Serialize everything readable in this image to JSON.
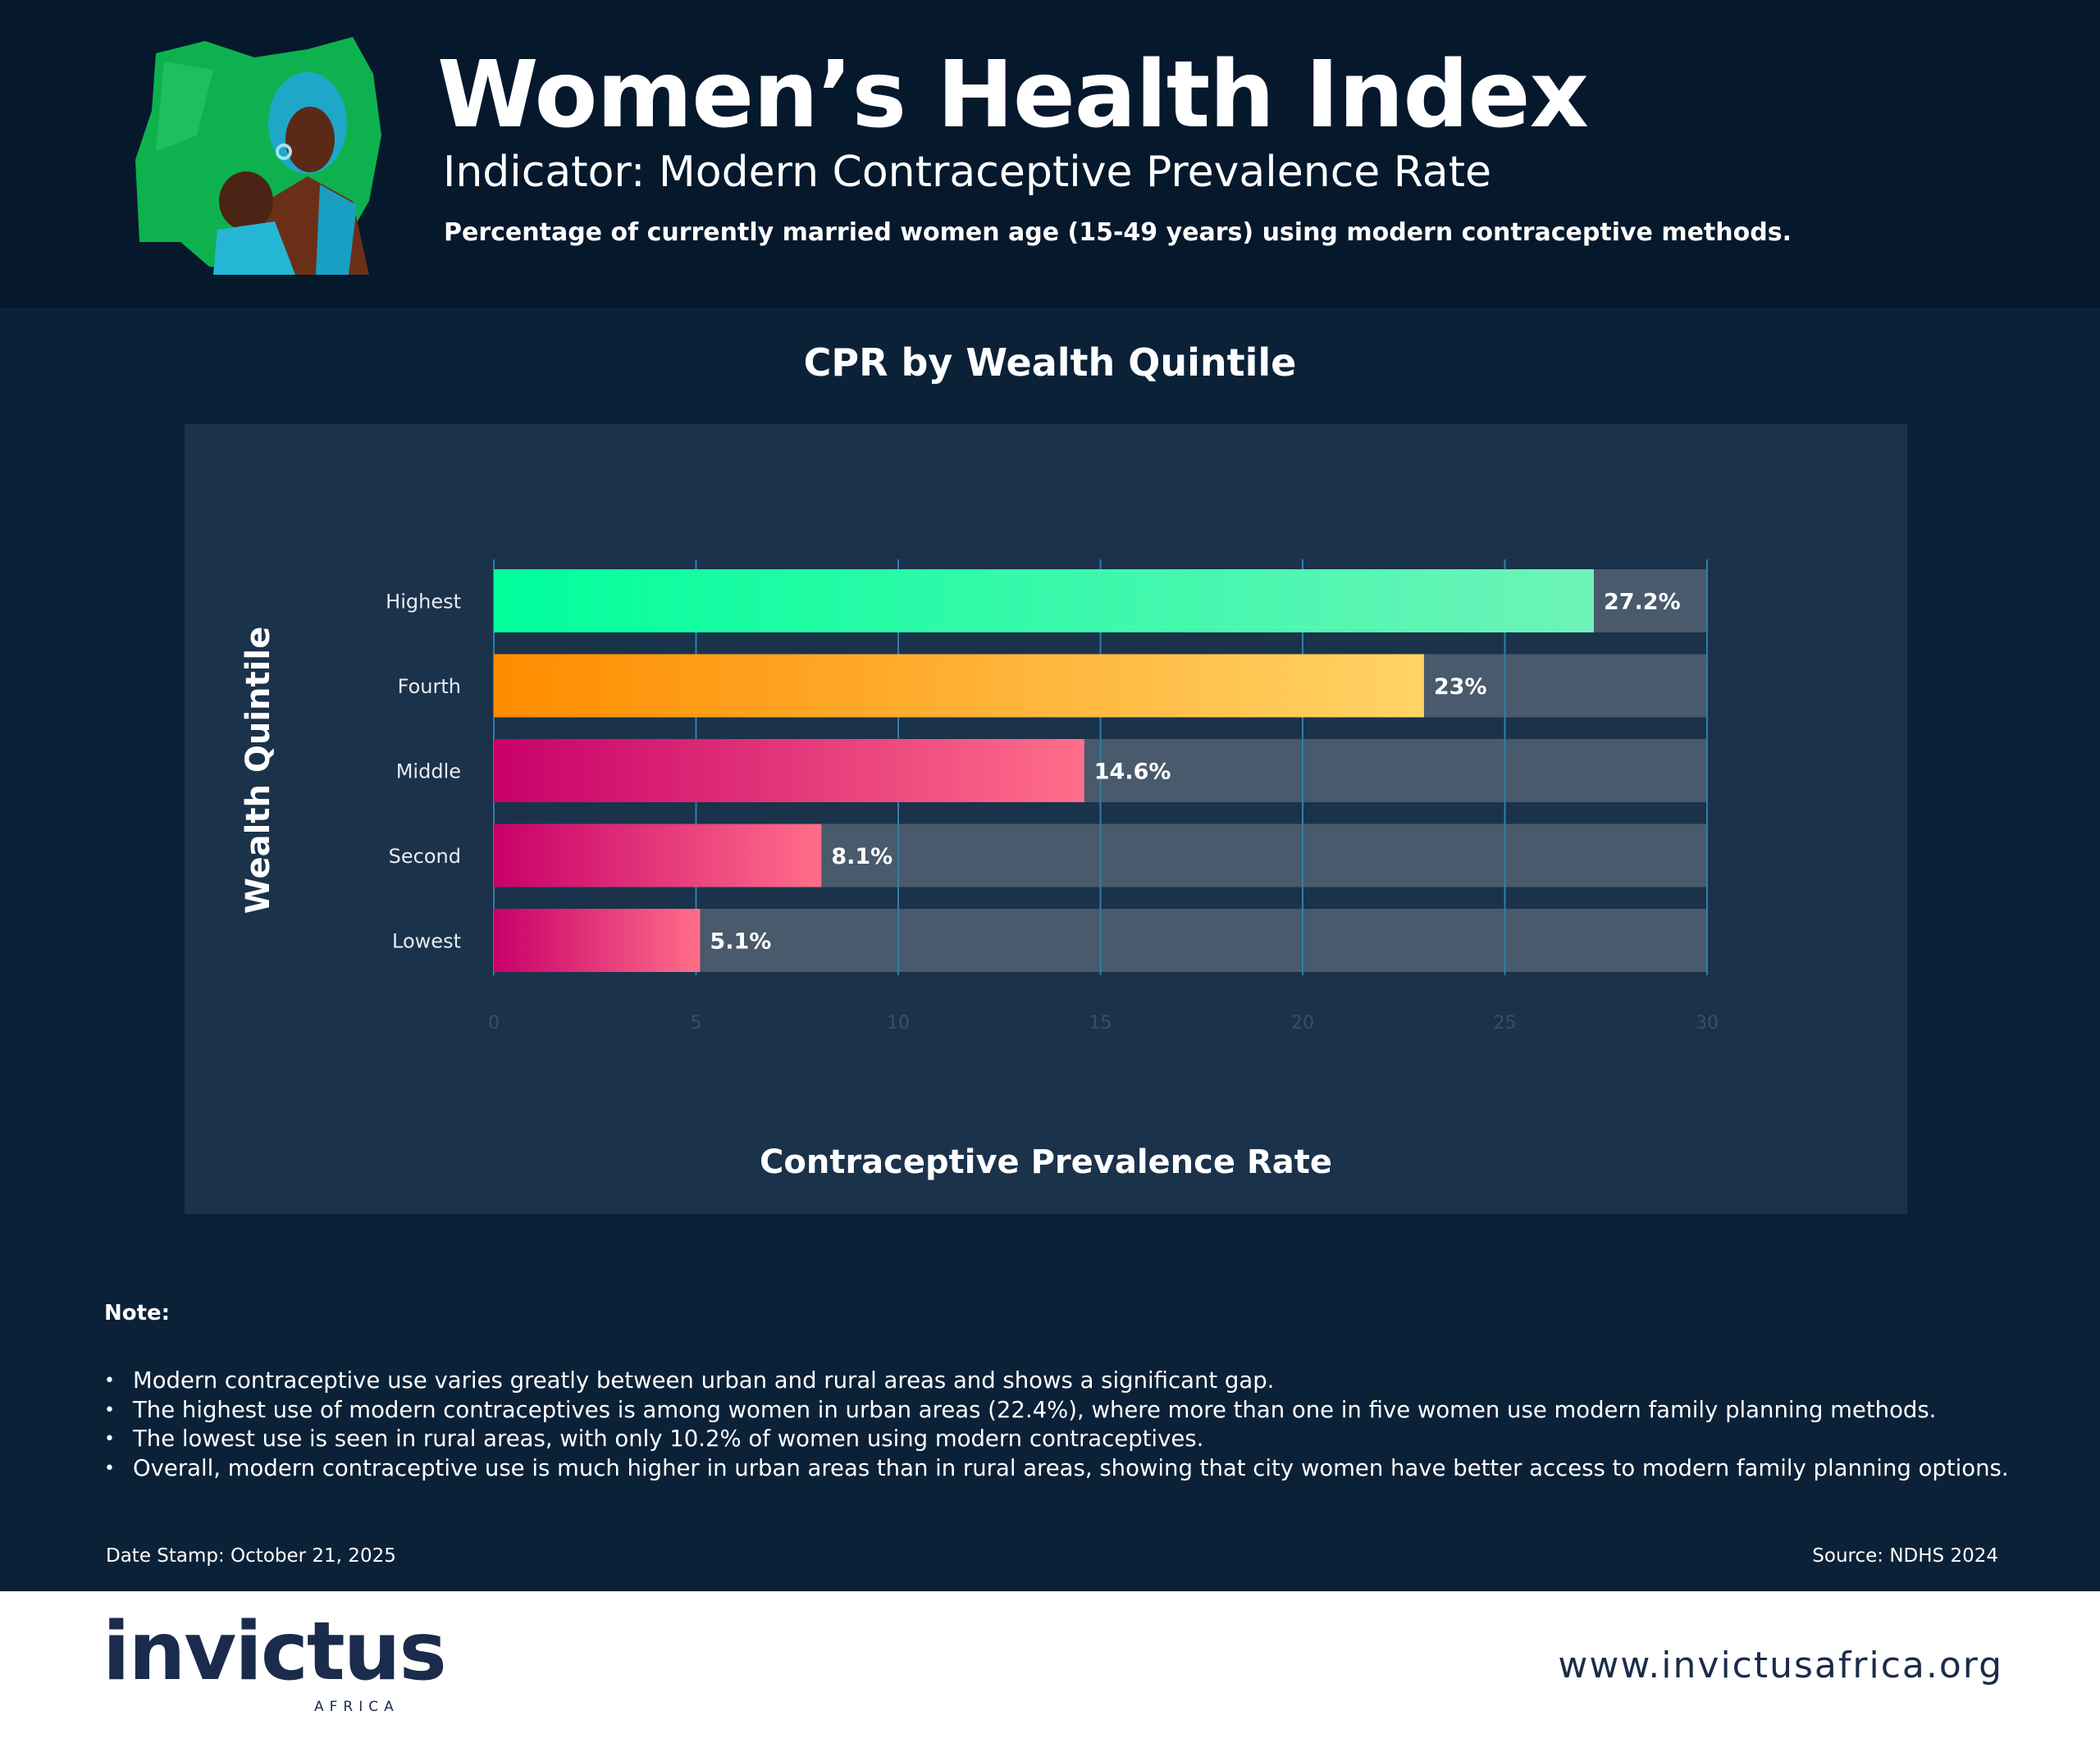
{
  "header": {
    "title": "Women’s Health Index",
    "indicator": "Indicator: Modern Contraceptive Prevalence Rate",
    "description": "Percentage of currently married women age (15-49 years) using modern contraceptive methods."
  },
  "chart_data": {
    "type": "bar",
    "orientation": "horizontal",
    "title": "CPR by Wealth Quintile",
    "xlabel": "Contraceptive Prevalence Rate",
    "ylabel": "Wealth Quintile",
    "categories": [
      "Highest",
      "Fourth",
      "Middle",
      "Second",
      "Lowest"
    ],
    "values": [
      27.2,
      23,
      14.6,
      8.1,
      5.1
    ],
    "value_labels": [
      "27.2%",
      "23%",
      "14.6%",
      "8.1%",
      "5.1%"
    ],
    "xlim": [
      0,
      30
    ],
    "xticks": [
      0,
      5,
      10,
      15,
      20,
      25,
      30
    ],
    "grid": true,
    "colors": {
      "Highest": [
        "#00ff9c",
        "#6ef3b9"
      ],
      "Fourth": [
        "#ff8c00",
        "#ffd466"
      ],
      "Middle": [
        "#c8006a",
        "#ff6e8a"
      ],
      "Second": [
        "#c8006a",
        "#ff6e8a"
      ],
      "Lowest": [
        "#c8006a",
        "#ff6e8a"
      ]
    },
    "track_color": "#485a6b",
    "gridline_color": "#2e7fa8"
  },
  "notes": {
    "label": "Note:",
    "bullet": "•",
    "items": [
      "Modern contraceptive use varies greatly between urban and rural areas and shows a significant gap.",
      "The highest use of modern contraceptives is among women in urban areas (22.4%), where more than one in five women use modern family planning methods.",
      "The lowest use is seen in rural areas, with only 10.2% of women using modern contraceptives.",
      "Overall, modern contraceptive use is much higher in urban areas than in rural areas, showing that city women have better access to modern family planning options."
    ]
  },
  "meta": {
    "date_stamp": "Date Stamp: October 21, 2025",
    "source": "Source: NDHS 2024"
  },
  "footer": {
    "logo_text": "invictus",
    "logo_sub": "AFRICA",
    "website": "www.invictusafrica.org"
  },
  "theme": {
    "background": "#0b1f36",
    "header_bg": "#06182c",
    "panel_bg": "#1b324b",
    "logo_accent": "#c2306e",
    "logo_dark": "#1b2b4b"
  }
}
